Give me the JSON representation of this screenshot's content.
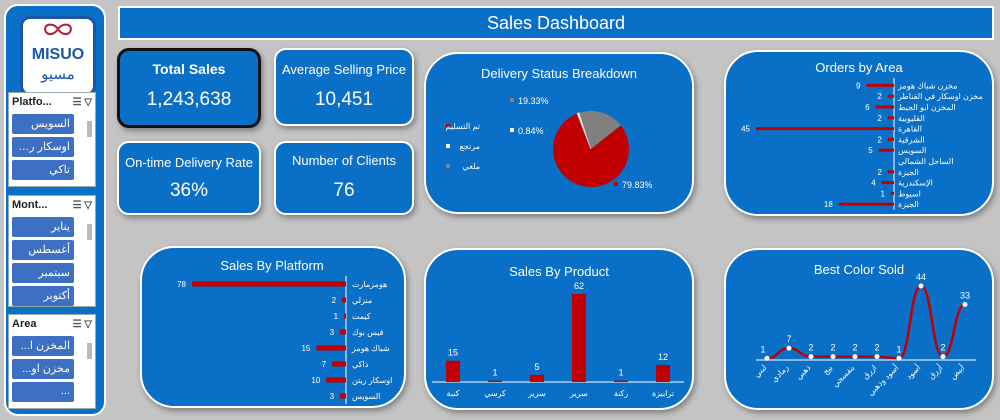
{
  "dashboard": {
    "title": "Sales Dashboard",
    "logo_text": "MISUO",
    "logo_sub": "مسيو"
  },
  "kpis": {
    "total_sales": {
      "label": "Total Sales",
      "value": "1,243,638"
    },
    "avg_price": {
      "label": "Average Selling Price",
      "value": "10,451"
    },
    "ontime": {
      "label": "On-time Delivery Rate",
      "value": "36%"
    },
    "clients": {
      "label": "Number of Clients",
      "value": "76"
    }
  },
  "slicers": [
    {
      "title": "Platfo...",
      "items": [
        "السويس",
        "اوسكار ريتن",
        "تاكي"
      ]
    },
    {
      "title": "Mont...",
      "items": [
        "يناير",
        "أغسطس",
        "سبتمبر",
        "أكتوبر"
      ]
    },
    {
      "title": "Area",
      "items": [
        "المخزن ا...",
        "مخزن او...",
        "..."
      ]
    }
  ],
  "chart_data": [
    {
      "type": "pie",
      "title": "Delivery Status Breakdown",
      "categories": [
        "تم التسليم",
        "مرتجع",
        "ملغي"
      ],
      "values": [
        79.83,
        0.84,
        19.33
      ],
      "labels": [
        "79.83%",
        "0.84%",
        "19.33%"
      ],
      "colors": [
        "#c00000",
        "#ffffff",
        "#7f7f7f"
      ],
      "legend": "left"
    },
    {
      "type": "bar",
      "orientation": "horizontal",
      "title": "Orders by Area",
      "categories": [
        "مخزن شباك هومز",
        "مخزن اوسكار في القناطر",
        "المخزن ابو الجيط",
        "القليوبية",
        "القاهرة",
        "الشرقية",
        "السويس",
        "الساحل الشمالي",
        "الجيزة",
        "الإسكندرية",
        "اسيوط",
        "الجيزة"
      ],
      "values": [
        9,
        2,
        6,
        2,
        45,
        2,
        5,
        null,
        2,
        4,
        1,
        18
      ]
    },
    {
      "type": "bar",
      "orientation": "horizontal",
      "title": "Sales By Platform",
      "categories": [
        "هومزمارت",
        "منزلي",
        "كيمت",
        "فيس بوك",
        "شباك هومز",
        "ذاكي",
        "اوسكار ريتن",
        "السويس"
      ],
      "values": [
        78,
        2,
        1,
        3,
        15,
        7,
        10,
        3
      ]
    },
    {
      "type": "bar",
      "title": "Sales By Product",
      "categories": [
        "كنبة",
        "كرسي",
        "سرير",
        "سرير",
        "ركنة",
        "ترابيزة"
      ],
      "values": [
        15,
        1,
        5,
        62,
        1,
        12
      ]
    },
    {
      "type": "line",
      "title": "Best Color Sold",
      "categories": [
        "لبني",
        "رمادي",
        "ذهبي",
        "بيج",
        "بنفسجي",
        "ازرق",
        "أسود وذهبي",
        "أسود",
        "أزرق",
        "أبيض"
      ],
      "values": [
        1,
        7,
        2,
        2,
        2,
        2,
        1,
        44,
        2,
        33
      ]
    }
  ],
  "colors": {
    "panel": "#0a6fc6",
    "bar": "#c00000",
    "background": "#c4c4c4"
  }
}
